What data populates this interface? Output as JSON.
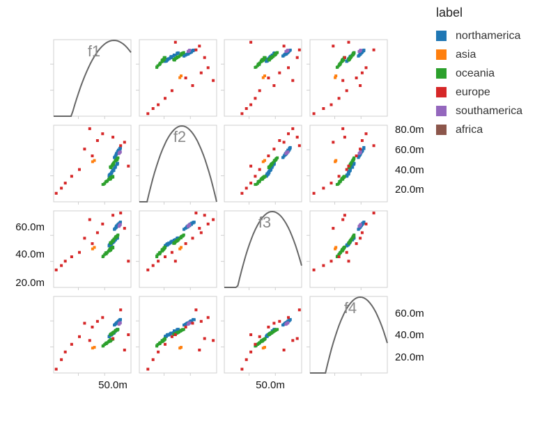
{
  "chart_data": {
    "type": "scatter",
    "subtype": "scatter-matrix",
    "variables": [
      "f1",
      "f2",
      "f3",
      "f4"
    ],
    "diagonal": "kde-curve",
    "legend": {
      "title": "label",
      "placement": "right",
      "entries": [
        {
          "name": "northamerica",
          "color": "#1f77b4"
        },
        {
          "name": "asia",
          "color": "#ff7f0e"
        },
        {
          "name": "oceania",
          "color": "#2ca02c"
        },
        {
          "name": "europe",
          "color": "#d62728"
        },
        {
          "name": "southamerica",
          "color": "#9467bd"
        },
        {
          "name": "africa",
          "color": "#8c564b"
        }
      ]
    },
    "ticks": {
      "f1_x": [
        "50.0m"
      ],
      "f3_x": [
        "50.0m"
      ],
      "f2_y_right": [
        "80.0m",
        "60.0m",
        "40.0m",
        "20.0m"
      ],
      "f3_y_left": [
        "60.0m",
        "40.0m",
        "20.0m"
      ],
      "f4_y_right": [
        "60.0m",
        "40.0m",
        "20.0m"
      ]
    },
    "axis_ranges": {
      "f1": [
        0,
        60
      ],
      "f2": [
        0,
        90
      ],
      "f3": [
        0,
        70
      ],
      "f4": [
        0,
        80
      ]
    },
    "clusters": [
      {
        "label": "northamerica",
        "f1": [
          47,
          52
        ],
        "f2": [
          52,
          64
        ],
        "f3": [
          53,
          60
        ],
        "f4": [
          50,
          56
        ]
      },
      {
        "label": "northamerica",
        "f1": [
          43,
          50
        ],
        "f2": [
          30,
          46
        ],
        "f3": [
          38,
          46
        ],
        "f4": [
          38,
          46
        ]
      },
      {
        "label": "oceania",
        "f1": [
          38,
          46
        ],
        "f2": [
          20,
          30
        ],
        "f3": [
          28,
          37
        ],
        "f4": [
          28,
          36
        ]
      },
      {
        "label": "oceania",
        "f1": [
          44,
          50
        ],
        "f2": [
          40,
          52
        ],
        "f3": [
          40,
          48
        ],
        "f4": [
          40,
          46
        ]
      },
      {
        "label": "asia",
        "f1": [
          30,
          32
        ],
        "f2": [
          47,
          49
        ],
        "f3": [
          35,
          37
        ],
        "f4": [
          26,
          27
        ]
      },
      {
        "label": "southamerica",
        "f1": [
          50,
          52
        ],
        "f2": [
          56,
          59
        ],
        "f3": [
          55,
          58
        ],
        "f4": [
          50,
          53
        ]
      }
    ],
    "europe_points": [
      {
        "f1": 2,
        "f2": 10,
        "f3": 16,
        "f4": 4
      },
      {
        "f1": 6,
        "f2": 16,
        "f3": 20,
        "f4": 14
      },
      {
        "f1": 9,
        "f2": 22,
        "f3": 24,
        "f4": 22
      },
      {
        "f1": 14,
        "f2": 30,
        "f3": 28,
        "f4": 30
      },
      {
        "f1": 20,
        "f2": 38,
        "f3": 32,
        "f4": 38
      },
      {
        "f1": 24,
        "f2": 62,
        "f3": 45,
        "f4": 52
      },
      {
        "f1": 30,
        "f2": 54,
        "f3": 40,
        "f4": 48
      },
      {
        "f1": 34,
        "f2": 72,
        "f3": 50,
        "f4": 54
      },
      {
        "f1": 38,
        "f2": 80,
        "f3": 58,
        "f4": 58
      },
      {
        "f1": 46,
        "f2": 76,
        "f3": 66,
        "f4": 36
      },
      {
        "f1": 52,
        "f2": 66,
        "f3": 68,
        "f4": 66
      },
      {
        "f1": 58,
        "f2": 42,
        "f3": 24,
        "f4": 40
      },
      {
        "f1": 55,
        "f2": 70,
        "f3": 54,
        "f4": 24
      },
      {
        "f1": 28,
        "f2": 86,
        "f3": 62,
        "f4": 34
      }
    ]
  }
}
